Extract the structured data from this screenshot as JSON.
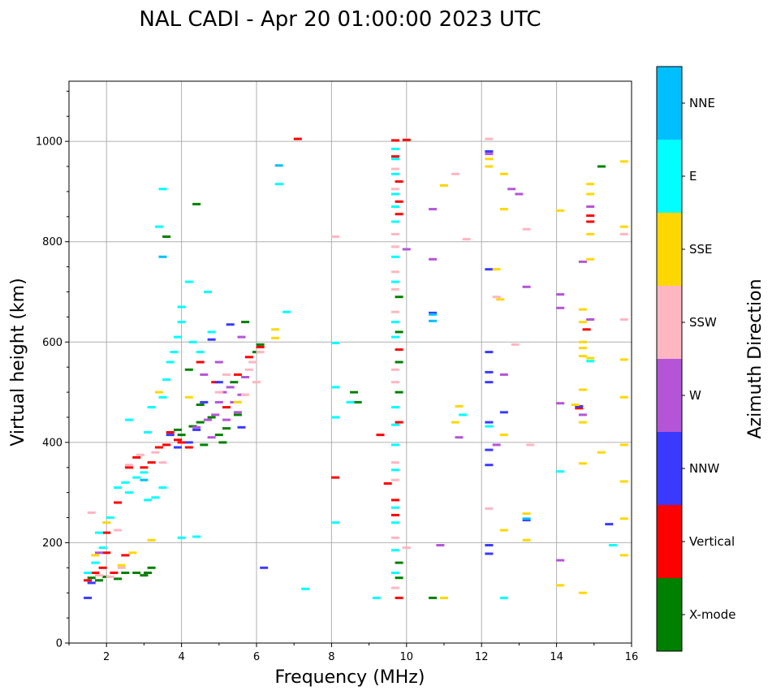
{
  "chart_data": {
    "type": "scatter",
    "title": "NAL CADI - Apr 20 01:00:00 2023 UTC",
    "xlabel": "Frequency (MHz)",
    "ylabel": "Virtual height (km)",
    "xlim": [
      1,
      16
    ],
    "ylim": [
      0,
      1120
    ],
    "xticks": [
      2,
      4,
      6,
      8,
      10,
      12,
      14,
      16
    ],
    "yticks": [
      0,
      200,
      400,
      600,
      800,
      1000
    ],
    "grid": true,
    "colorbar": {
      "title": "Azimuth Direction",
      "categories": [
        {
          "name": "X-mode",
          "color": "#008000"
        },
        {
          "name": "Vertical",
          "color": "#ff0000"
        },
        {
          "name": "NNW",
          "color": "#3a3aff"
        },
        {
          "name": "W",
          "color": "#b455d8"
        },
        {
          "name": "SSW",
          "color": "#ffb6c1"
        },
        {
          "name": "SSE",
          "color": "#ffd700"
        },
        {
          "name": "E",
          "color": "#00ffff"
        },
        {
          "name": "NNE",
          "color": "#00bfff"
        }
      ]
    },
    "series": [
      {
        "name": "X-mode",
        "points": [
          [
            1.6,
            130
          ],
          [
            1.8,
            125
          ],
          [
            2.0,
            132
          ],
          [
            2.3,
            128
          ],
          [
            2.5,
            140
          ],
          [
            2.8,
            140
          ],
          [
            3.0,
            135
          ],
          [
            3.1,
            140
          ],
          [
            3.2,
            150
          ],
          [
            3.9,
            425
          ],
          [
            4.0,
            415
          ],
          [
            4.3,
            432
          ],
          [
            4.5,
            440
          ],
          [
            4.6,
            395
          ],
          [
            4.8,
            450
          ],
          [
            5.0,
            415
          ],
          [
            5.2,
            428
          ],
          [
            5.4,
            520
          ],
          [
            5.7,
            640
          ],
          [
            5.9,
            560
          ],
          [
            6.0,
            580
          ],
          [
            6.1,
            595
          ],
          [
            4.4,
            875
          ],
          [
            3.6,
            810
          ],
          [
            8.6,
            500
          ],
          [
            8.7,
            480
          ],
          [
            9.8,
            690
          ],
          [
            9.8,
            620
          ],
          [
            9.8,
            560
          ],
          [
            9.8,
            500
          ],
          [
            9.8,
            160
          ],
          [
            9.8,
            130
          ],
          [
            10.7,
            90
          ],
          [
            15.2,
            950
          ],
          [
            4.2,
            545
          ],
          [
            4.5,
            475
          ],
          [
            5.1,
            400
          ],
          [
            5.5,
            455
          ]
        ]
      },
      {
        "name": "Vertical",
        "points": [
          [
            1.5,
            125
          ],
          [
            1.7,
            140
          ],
          [
            1.9,
            150
          ],
          [
            2.0,
            220
          ],
          [
            2.0,
            180
          ],
          [
            2.2,
            140
          ],
          [
            2.3,
            280
          ],
          [
            2.6,
            350
          ],
          [
            2.8,
            370
          ],
          [
            3.0,
            350
          ],
          [
            3.2,
            360
          ],
          [
            3.4,
            390
          ],
          [
            3.7,
            420
          ],
          [
            3.9,
            405
          ],
          [
            4.0,
            400
          ],
          [
            4.2,
            390
          ],
          [
            4.5,
            560
          ],
          [
            4.9,
            520
          ],
          [
            5.2,
            470
          ],
          [
            5.5,
            535
          ],
          [
            5.8,
            570
          ],
          [
            6.1,
            590
          ],
          [
            7.1,
            1005
          ],
          [
            8.1,
            330
          ],
          [
            9.3,
            415
          ],
          [
            9.5,
            318
          ],
          [
            9.7,
            1002
          ],
          [
            9.7,
            970
          ],
          [
            9.8,
            920
          ],
          [
            9.8,
            880
          ],
          [
            9.8,
            855
          ],
          [
            9.8,
            585
          ],
          [
            9.8,
            440
          ],
          [
            9.7,
            285
          ],
          [
            9.7,
            255
          ],
          [
            9.8,
            90
          ],
          [
            10.0,
            1003
          ],
          [
            14.9,
            852
          ],
          [
            14.9,
            840
          ],
          [
            14.8,
            625
          ],
          [
            14.6,
            468
          ],
          [
            2.5,
            175
          ],
          [
            3.6,
            395
          ]
        ]
      },
      {
        "name": "NNW",
        "points": [
          [
            1.5,
            90
          ],
          [
            1.6,
            120
          ],
          [
            3.7,
            415
          ],
          [
            3.9,
            390
          ],
          [
            4.2,
            400
          ],
          [
            4.4,
            425
          ],
          [
            4.6,
            480
          ],
          [
            4.8,
            605
          ],
          [
            5.0,
            520
          ],
          [
            5.3,
            635
          ],
          [
            5.6,
            430
          ],
          [
            6.2,
            150
          ],
          [
            12.2,
            980
          ],
          [
            12.2,
            745
          ],
          [
            12.2,
            580
          ],
          [
            12.2,
            540
          ],
          [
            12.2,
            520
          ],
          [
            12.2,
            440
          ],
          [
            12.2,
            385
          ],
          [
            12.2,
            355
          ],
          [
            12.2,
            195
          ],
          [
            12.2,
            178
          ],
          [
            12.6,
            460
          ],
          [
            13.2,
            245
          ],
          [
            14.6,
            472
          ],
          [
            15.4,
            237
          ],
          [
            10.7,
            658
          ]
        ]
      },
      {
        "name": "W",
        "points": [
          [
            4.4,
            430
          ],
          [
            4.6,
            535
          ],
          [
            4.7,
            445
          ],
          [
            4.8,
            410
          ],
          [
            4.9,
            455
          ],
          [
            5.0,
            480
          ],
          [
            5.1,
            500
          ],
          [
            5.2,
            445
          ],
          [
            5.3,
            510
          ],
          [
            5.4,
            480
          ],
          [
            5.5,
            460
          ],
          [
            5.6,
            495
          ],
          [
            5.7,
            530
          ],
          [
            5.0,
            560
          ],
          [
            5.6,
            610
          ],
          [
            10.0,
            785
          ],
          [
            10.7,
            865
          ],
          [
            10.7,
            765
          ],
          [
            10.9,
            195
          ],
          [
            12.2,
            975
          ],
          [
            12.4,
            395
          ],
          [
            12.6,
            535
          ],
          [
            12.8,
            905
          ],
          [
            13.0,
            895
          ],
          [
            13.2,
            710
          ],
          [
            14.1,
            695
          ],
          [
            14.1,
            668
          ],
          [
            14.1,
            478
          ],
          [
            14.1,
            165
          ],
          [
            14.7,
            760
          ],
          [
            14.7,
            455
          ],
          [
            14.9,
            870
          ],
          [
            14.9,
            645
          ],
          [
            11.4,
            410
          ],
          [
            1.8,
            180
          ]
        ]
      },
      {
        "name": "SSW",
        "points": [
          [
            1.8,
            135
          ],
          [
            2.1,
            132
          ],
          [
            2.4,
            150
          ],
          [
            2.6,
            355
          ],
          [
            2.9,
            375
          ],
          [
            3.3,
            380
          ],
          [
            3.5,
            360
          ],
          [
            5.0,
            500
          ],
          [
            5.2,
            535
          ],
          [
            5.5,
            480
          ],
          [
            5.7,
            495
          ],
          [
            5.8,
            545
          ],
          [
            5.9,
            560
          ],
          [
            6.0,
            520
          ],
          [
            6.1,
            580
          ],
          [
            8.1,
            810
          ],
          [
            9.7,
            945
          ],
          [
            9.7,
            905
          ],
          [
            9.7,
            815
          ],
          [
            9.7,
            790
          ],
          [
            9.7,
            740
          ],
          [
            9.7,
            705
          ],
          [
            9.7,
            660
          ],
          [
            9.7,
            545
          ],
          [
            9.7,
            520
          ],
          [
            9.7,
            360
          ],
          [
            9.7,
            325
          ],
          [
            9.7,
            210
          ],
          [
            9.7,
            110
          ],
          [
            10.0,
            190
          ],
          [
            11.3,
            935
          ],
          [
            11.6,
            805
          ],
          [
            12.2,
            268
          ],
          [
            12.2,
            1005
          ],
          [
            12.4,
            690
          ],
          [
            12.9,
            595
          ],
          [
            13.2,
            825
          ],
          [
            13.3,
            395
          ],
          [
            15.8,
            815
          ],
          [
            15.8,
            645
          ],
          [
            1.6,
            260
          ],
          [
            2.3,
            225
          ]
        ]
      },
      {
        "name": "SSE",
        "points": [
          [
            1.7,
            175
          ],
          [
            2.0,
            240
          ],
          [
            2.4,
            155
          ],
          [
            2.7,
            180
          ],
          [
            3.2,
            205
          ],
          [
            3.4,
            500
          ],
          [
            4.2,
            490
          ],
          [
            5.5,
            480
          ],
          [
            6.5,
            625
          ],
          [
            6.5,
            608
          ],
          [
            11.0,
            912
          ],
          [
            11.4,
            472
          ],
          [
            11.3,
            440
          ],
          [
            11.0,
            90
          ],
          [
            12.2,
            965
          ],
          [
            12.2,
            950
          ],
          [
            12.4,
            745
          ],
          [
            12.5,
            685
          ],
          [
            12.6,
            935
          ],
          [
            12.6,
            865
          ],
          [
            12.6,
            415
          ],
          [
            12.6,
            225
          ],
          [
            13.2,
            258
          ],
          [
            13.2,
            205
          ],
          [
            14.1,
            862
          ],
          [
            14.1,
            115
          ],
          [
            14.7,
            665
          ],
          [
            14.7,
            640
          ],
          [
            14.7,
            600
          ],
          [
            14.7,
            588
          ],
          [
            14.7,
            572
          ],
          [
            14.7,
            505
          ],
          [
            14.7,
            440
          ],
          [
            14.7,
            358
          ],
          [
            14.7,
            100
          ],
          [
            14.9,
            915
          ],
          [
            14.9,
            895
          ],
          [
            14.9,
            815
          ],
          [
            14.9,
            765
          ],
          [
            14.9,
            568
          ],
          [
            15.2,
            380
          ],
          [
            15.8,
            960
          ],
          [
            15.8,
            830
          ],
          [
            15.8,
            565
          ],
          [
            15.8,
            490
          ],
          [
            15.8,
            395
          ],
          [
            15.8,
            322
          ],
          [
            15.8,
            248
          ],
          [
            15.8,
            175
          ],
          [
            14.5,
            475
          ]
        ]
      },
      {
        "name": "E",
        "points": [
          [
            1.5,
            140
          ],
          [
            1.7,
            160
          ],
          [
            1.8,
            220
          ],
          [
            1.9,
            190
          ],
          [
            2.1,
            250
          ],
          [
            2.3,
            310
          ],
          [
            2.5,
            320
          ],
          [
            2.6,
            300
          ],
          [
            2.8,
            330
          ],
          [
            3.0,
            340
          ],
          [
            3.1,
            285
          ],
          [
            3.3,
            290
          ],
          [
            3.5,
            310
          ],
          [
            3.2,
            470
          ],
          [
            3.5,
            490
          ],
          [
            3.6,
            525
          ],
          [
            3.7,
            560
          ],
          [
            3.8,
            580
          ],
          [
            3.9,
            610
          ],
          [
            4.0,
            640
          ],
          [
            4.0,
            670
          ],
          [
            4.2,
            720
          ],
          [
            4.3,
            600
          ],
          [
            4.5,
            580
          ],
          [
            4.7,
            700
          ],
          [
            4.8,
            620
          ],
          [
            2.6,
            445
          ],
          [
            3.5,
            905
          ],
          [
            3.4,
            830
          ],
          [
            4.0,
            210
          ],
          [
            4.4,
            212
          ],
          [
            6.6,
            915
          ],
          [
            6.8,
            660
          ],
          [
            7.3,
            108
          ],
          [
            8.1,
            598
          ],
          [
            8.1,
            510
          ],
          [
            8.1,
            450
          ],
          [
            8.1,
            240
          ],
          [
            8.5,
            480
          ],
          [
            9.2,
            90
          ],
          [
            9.7,
            985
          ],
          [
            9.7,
            965
          ],
          [
            9.7,
            935
          ],
          [
            9.7,
            895
          ],
          [
            9.7,
            870
          ],
          [
            9.7,
            840
          ],
          [
            9.7,
            770
          ],
          [
            9.7,
            720
          ],
          [
            9.7,
            640
          ],
          [
            9.7,
            610
          ],
          [
            9.7,
            470
          ],
          [
            9.7,
            435
          ],
          [
            9.7,
            395
          ],
          [
            9.7,
            345
          ],
          [
            9.7,
            270
          ],
          [
            9.7,
            240
          ],
          [
            9.7,
            185
          ],
          [
            9.7,
            140
          ],
          [
            11.5,
            455
          ],
          [
            12.2,
            432
          ],
          [
            12.6,
            90
          ],
          [
            14.1,
            342
          ],
          [
            14.9,
            562
          ],
          [
            15.5,
            195
          ],
          [
            3.1,
            420
          ]
        ]
      },
      {
        "name": "NNE",
        "points": [
          [
            3.5,
            770
          ],
          [
            6.6,
            952
          ],
          [
            10.7,
            655
          ],
          [
            10.7,
            642
          ],
          [
            13.2,
            248
          ],
          [
            3.0,
            325
          ]
        ]
      }
    ]
  }
}
